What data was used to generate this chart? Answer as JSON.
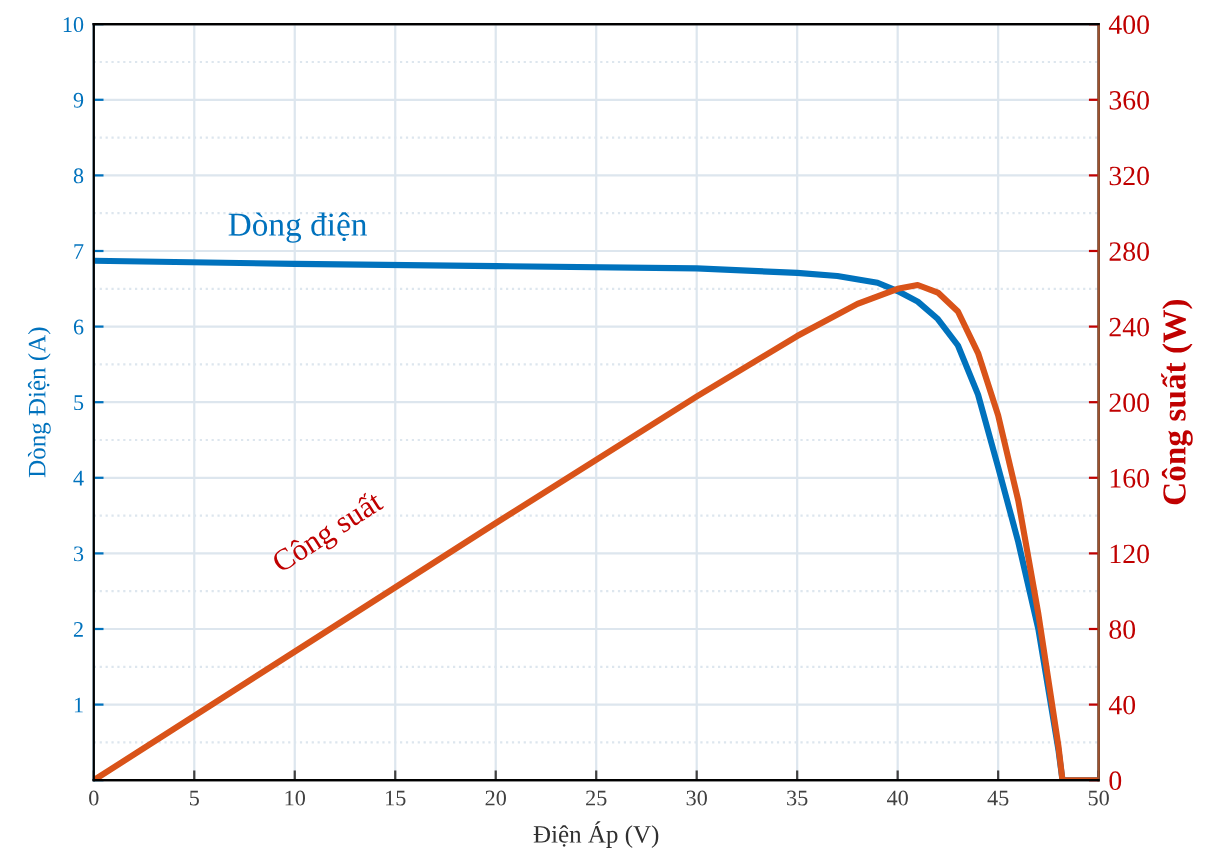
{
  "chart_data": {
    "type": "line",
    "xlabel": "Điện Áp (V)",
    "ylabel": "Dòng Điện (A)",
    "y2label": "Công suất (W)",
    "xlim": [
      0,
      50
    ],
    "xticks": [
      0,
      5,
      10,
      15,
      20,
      25,
      30,
      35,
      40,
      45,
      50
    ],
    "ylim": [
      0,
      10
    ],
    "yticks": [
      {
        "value": 0,
        "label": null
      },
      1,
      2,
      3,
      4,
      5,
      6,
      7,
      8,
      9,
      10
    ],
    "y2lim": [
      0,
      400
    ],
    "y2ticks": [
      0,
      40,
      80,
      120,
      160,
      200,
      240,
      280,
      320,
      360,
      400
    ],
    "grid": true,
    "legend": false,
    "line_style": "solid",
    "marker": "none",
    "series": [
      {
        "name": "Dòng điện",
        "color": "#0072bd",
        "x": [
          0,
          10,
          20,
          30,
          35,
          37,
          39,
          40,
          41,
          42,
          43,
          44,
          45,
          46,
          47,
          48,
          48.2,
          50
        ],
        "values": [
          6.87,
          6.83,
          6.8,
          6.77,
          6.71,
          6.67,
          6.58,
          6.47,
          6.33,
          6.1,
          5.75,
          5.1,
          4.14,
          3.15,
          2.0,
          0.4,
          0,
          0
        ]
      },
      {
        "name": "Công suất",
        "color": "#d95319",
        "axis": "y2",
        "x": [
          0,
          10,
          20,
          30,
          35,
          38,
          40,
          41,
          42,
          43,
          44,
          45,
          46,
          47,
          48,
          48.2,
          50
        ],
        "values": [
          0,
          68,
          136,
          203,
          235,
          252,
          260,
          262,
          258,
          248,
          226,
          193,
          148,
          88,
          18,
          0,
          0
        ]
      }
    ]
  }
}
